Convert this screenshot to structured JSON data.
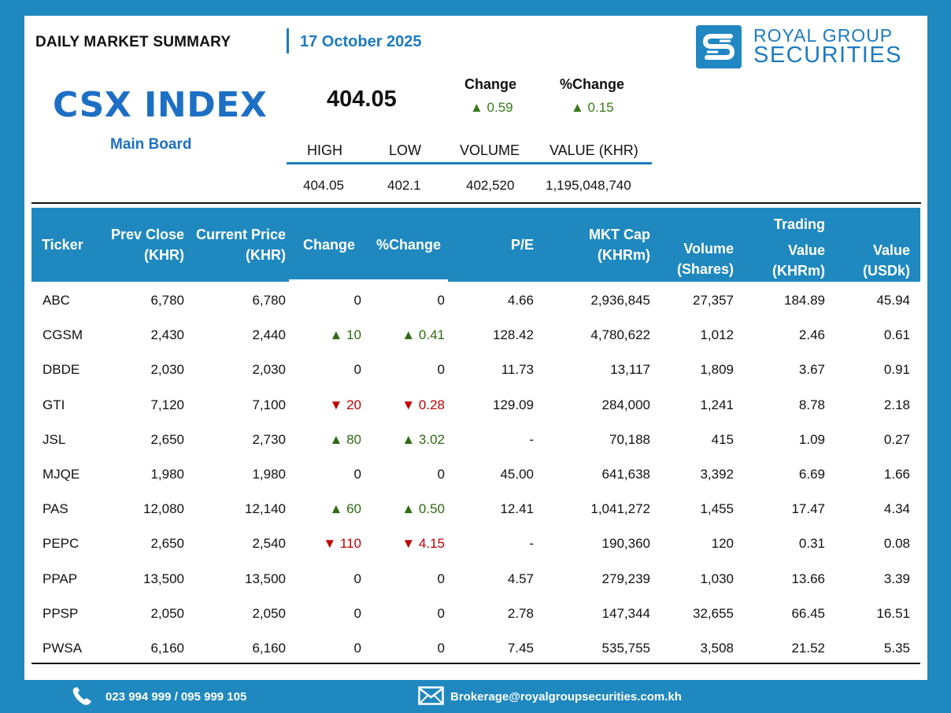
{
  "header": {
    "title": "DAILY MARKET SUMMARY",
    "date": "17 October 2025",
    "brand_line1": "ROYAL GROUP",
    "brand_line2": "SECURITIES"
  },
  "index": {
    "name": "CSX INDEX",
    "board": "Main Board",
    "value": "404.05",
    "change_label": "Change",
    "change_value": "▲ 0.59",
    "pct_change_label": "%Change",
    "pct_change_value": "▲ 0.15",
    "stats_labels": [
      "HIGH",
      "LOW",
      "VOLUME",
      "VALUE (KHR)"
    ],
    "stats_values": [
      "404.05",
      "402.1",
      "402,520",
      "1,195,048,740"
    ]
  },
  "table": {
    "headers": {
      "ticker": "Ticker",
      "prev_close_1": "Prev Close",
      "prev_close_2": "(KHR)",
      "current_1": "Current Price",
      "current_2": "(KHR)",
      "change": "Change",
      "pct_change": "%Change",
      "pe": "P/E",
      "mktcap_1": "MKT Cap",
      "mktcap_2": "(KHRm)",
      "volume_1": "Volume",
      "volume_2": "(Shares)",
      "trading": "Trading",
      "value_khr_1": "Value",
      "value_khr_2": "(KHRm)",
      "value_usd_1": "Value",
      "value_usd_2": "(USDk)"
    },
    "rows": [
      {
        "ticker": "ABC",
        "prev": "6,780",
        "cur": "6,780",
        "chg": "0",
        "pct": "0",
        "dir": "flat",
        "pe": "4.66",
        "mcap": "2,936,845",
        "vol": "27,357",
        "vkhr": "184.89",
        "vusd": "45.94"
      },
      {
        "ticker": "CGSM",
        "prev": "2,430",
        "cur": "2,440",
        "chg": "▲ 10",
        "pct": "▲ 0.41",
        "dir": "up",
        "pe": "128.42",
        "mcap": "4,780,622",
        "vol": "1,012",
        "vkhr": "2.46",
        "vusd": "0.61"
      },
      {
        "ticker": "DBDE",
        "prev": "2,030",
        "cur": "2,030",
        "chg": "0",
        "pct": "0",
        "dir": "flat",
        "pe": "11.73",
        "mcap": "13,117",
        "vol": "1,809",
        "vkhr": "3.67",
        "vusd": "0.91"
      },
      {
        "ticker": "GTI",
        "prev": "7,120",
        "cur": "7,100",
        "chg": "▼ 20",
        "pct": "▼ 0.28",
        "dir": "down",
        "pe": "129.09",
        "mcap": "284,000",
        "vol": "1,241",
        "vkhr": "8.78",
        "vusd": "2.18"
      },
      {
        "ticker": "JSL",
        "prev": "2,650",
        "cur": "2,730",
        "chg": "▲ 80",
        "pct": "▲ 3.02",
        "dir": "up",
        "pe": "-",
        "mcap": "70,188",
        "vol": "415",
        "vkhr": "1.09",
        "vusd": "0.27"
      },
      {
        "ticker": "MJQE",
        "prev": "1,980",
        "cur": "1,980",
        "chg": "0",
        "pct": "0",
        "dir": "flat",
        "pe": "45.00",
        "mcap": "641,638",
        "vol": "3,392",
        "vkhr": "6.69",
        "vusd": "1.66"
      },
      {
        "ticker": "PAS",
        "prev": "12,080",
        "cur": "12,140",
        "chg": "▲ 60",
        "pct": "▲ 0.50",
        "dir": "up",
        "pe": "12.41",
        "mcap": "1,041,272",
        "vol": "1,455",
        "vkhr": "17.47",
        "vusd": "4.34"
      },
      {
        "ticker": "PEPC",
        "prev": "2,650",
        "cur": "2,540",
        "chg": "▼ 110",
        "pct": "▼ 4.15",
        "dir": "down",
        "pe": "-",
        "mcap": "190,360",
        "vol": "120",
        "vkhr": "0.31",
        "vusd": "0.08"
      },
      {
        "ticker": "PPAP",
        "prev": "13,500",
        "cur": "13,500",
        "chg": "0",
        "pct": "0",
        "dir": "flat",
        "pe": "4.57",
        "mcap": "279,239",
        "vol": "1,030",
        "vkhr": "13.66",
        "vusd": "3.39"
      },
      {
        "ticker": "PPSP",
        "prev": "2,050",
        "cur": "2,050",
        "chg": "0",
        "pct": "0",
        "dir": "flat",
        "pe": "2.78",
        "mcap": "147,344",
        "vol": "32,655",
        "vkhr": "66.45",
        "vusd": "16.51"
      },
      {
        "ticker": "PWSA",
        "prev": "6,160",
        "cur": "6,160",
        "chg": "0",
        "pct": "0",
        "dir": "flat",
        "pe": "7.45",
        "mcap": "535,755",
        "vol": "3,508",
        "vkhr": "21.52",
        "vusd": "5.35"
      }
    ]
  },
  "footer": {
    "phone": "023 994 999 / 095 999 105",
    "email": "Brokerage@royalgroupsecurities.com.kh",
    "phone_icon": "phone-icon",
    "email_icon": "envelope-icon"
  },
  "colors": {
    "brand_blue": "#1f88bf",
    "title_blue": "#1d6fc4",
    "up_green": "#2e6b12",
    "down_red": "#c00000"
  }
}
